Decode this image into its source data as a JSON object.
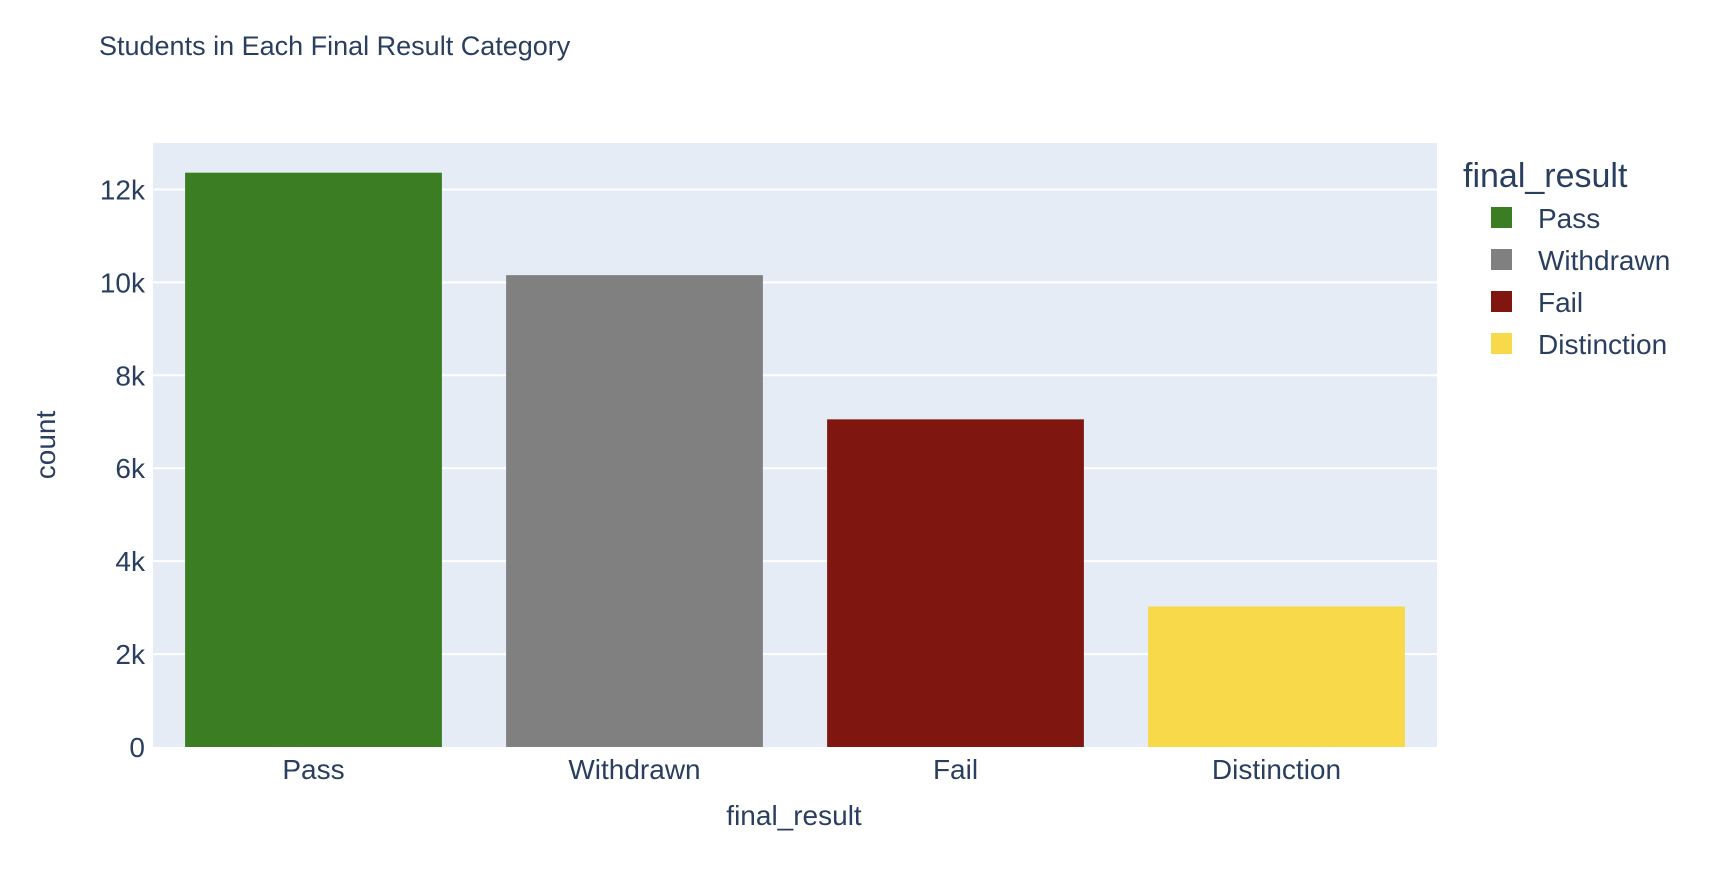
{
  "chart_data": {
    "type": "bar",
    "title": "Students in Each Final Result Category",
    "xlabel": "final_result",
    "ylabel": "count",
    "categories": [
      "Pass",
      "Withdrawn",
      "Fail",
      "Distinction"
    ],
    "values": [
      12361,
      10156,
      7052,
      3024
    ],
    "colors": [
      "#3a7d22",
      "#808080",
      "#7f1710",
      "#f8d94a"
    ],
    "ylim": [
      0,
      13000
    ],
    "yticks": [
      0,
      2000,
      4000,
      6000,
      8000,
      10000,
      12000
    ],
    "ytick_labels": [
      "0",
      "2k",
      "4k",
      "6k",
      "8k",
      "10k",
      "12k"
    ],
    "grid": true,
    "legend": {
      "title": "final_result",
      "placement": "right",
      "items": [
        {
          "label": "Pass",
          "color": "#3a7d22"
        },
        {
          "label": "Withdrawn",
          "color": "#808080"
        },
        {
          "label": "Fail",
          "color": "#7f1710"
        },
        {
          "label": "Distinction",
          "color": "#f8d94a"
        }
      ]
    },
    "plot_background": "#e5ecf6",
    "text_color": "#2a3f5f"
  }
}
